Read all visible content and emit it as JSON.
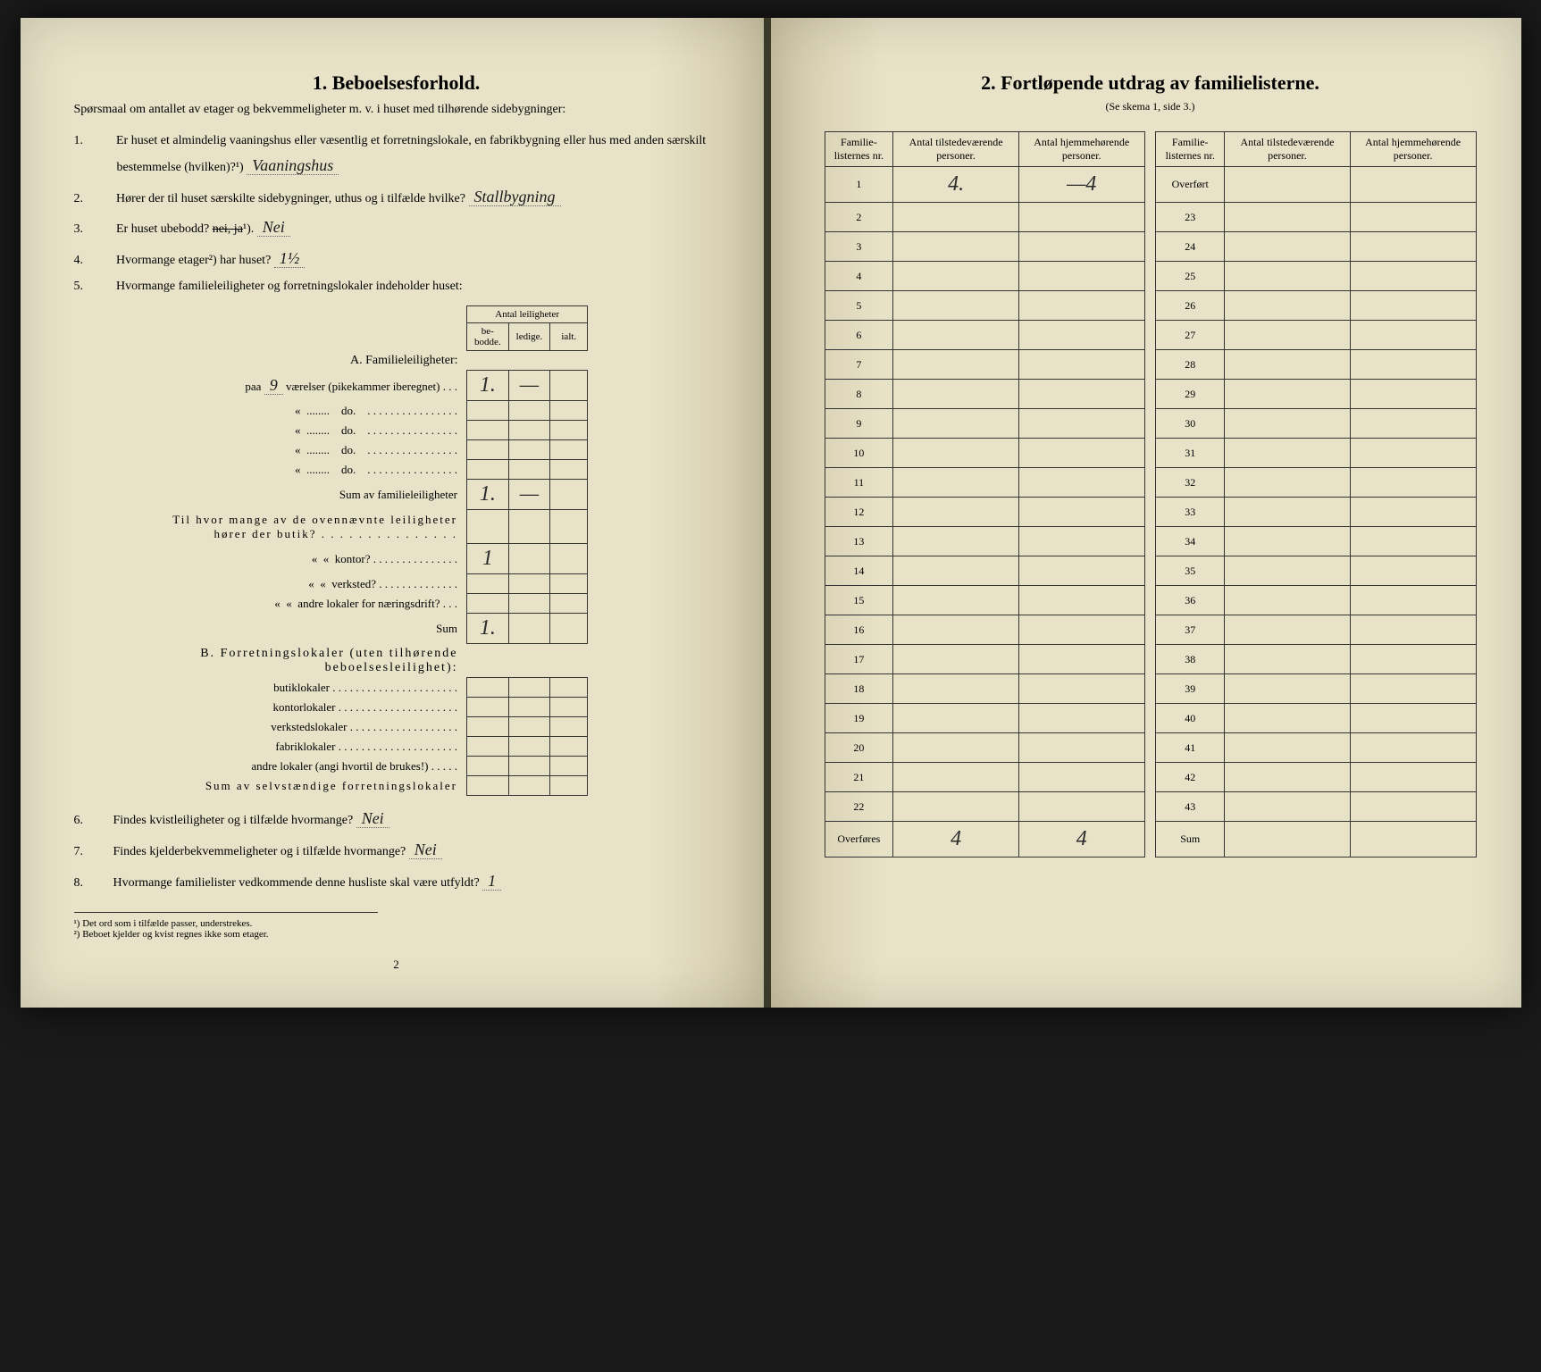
{
  "left": {
    "title": "1.   Beboelsesforhold.",
    "intro": "Spørsmaal om antallet av etager og bekvemmeligheter m. v. i huset med tilhørende sidebygninger:",
    "q1": "Er huset et almindelig vaaningshus eller væsentlig et forretningslokale, en fabrikbygning eller hus med anden særskilt bestemmelse (hvilken)?¹)",
    "a1": "Vaaningshus",
    "q2": "Hører der til huset særskilte sidebygninger, uthus og i tilfælde hvilke?",
    "a2": "Stallbygning",
    "q3": "Er huset ubebodd?",
    "a3_struck": "nei, ja",
    "a3": "Nei",
    "q4": "Hvormange etager²) har huset?",
    "a4": "1½",
    "q5": "Hvormange familieleiligheter og forretningslokaler indeholder huset:",
    "leil_header_top": "Antal leiligheter",
    "leil_cols": [
      "be-bodde.",
      "ledige.",
      "ialt."
    ],
    "sectionA": "A. Familieleiligheter:",
    "rowA1_label": "paa",
    "rowA1_hand": "9",
    "rowA1_rest": "værelser (pikekammer iberegnet) . . .",
    "rowA1_val": "1.",
    "rowA1_val2": "—",
    "rowA_do": "do.",
    "sumA": "Sum av familieleiligheter",
    "sumA_val": "1.",
    "sumA_val2": "—",
    "midq": "Til hvor mange av de ovennævnte leiligheter hører der butik?",
    "mid_kontor": "kontor?",
    "mid_kontor_val": "1",
    "mid_verksted": "verksted?",
    "mid_andre": "andre lokaler for næringsdrift?",
    "mid_sum": "Sum",
    "mid_sum_val": "1.",
    "sectionB": "B. Forretningslokaler (uten tilhørende beboelsesleilighet):",
    "b_rows": [
      "butiklokaler",
      "kontorlokaler",
      "verkstedslokaler",
      "fabriklokaler",
      "andre lokaler (angi hvortil de brukes!)"
    ],
    "sumB": "Sum av selvstændige forretningslokaler",
    "q6": "Findes kvistleiligheter og i tilfælde hvormange?",
    "a6": "Nei",
    "q7": "Findes kjelderbekvemmeligheter og i tilfælde hvormange?",
    "a7": "Nei",
    "q8": "Hvormange familielister vedkommende denne husliste skal være utfyldt?",
    "a8": "1",
    "fn1": "Det ord som i tilfælde passer, understrekes.",
    "fn2": "Beboet kjelder og kvist regnes ikke som etager.",
    "pagenum": "2"
  },
  "right": {
    "title": "2.   Fortløpende utdrag av familielisterne.",
    "subtitle": "(Se skema 1, side 3.)",
    "headers": [
      "Familie-listernes nr.",
      "Antal tilstedeværende personer.",
      "Antal hjemmehørende personer."
    ],
    "row1_tilst": "4.",
    "row1_hjemme": "—4",
    "overfort": "Overført",
    "overfores": "Overføres",
    "sum": "Sum",
    "over_tilst": "4",
    "over_hjemme": "4",
    "left_nums": [
      "1",
      "2",
      "3",
      "4",
      "5",
      "6",
      "7",
      "8",
      "9",
      "10",
      "11",
      "12",
      "13",
      "14",
      "15",
      "16",
      "17",
      "18",
      "19",
      "20",
      "21",
      "22"
    ],
    "right_nums": [
      "23",
      "24",
      "25",
      "26",
      "27",
      "28",
      "29",
      "30",
      "31",
      "32",
      "33",
      "34",
      "35",
      "36",
      "37",
      "38",
      "39",
      "40",
      "41",
      "42",
      "43"
    ]
  },
  "colors": {
    "paper": "#e8e2c8",
    "ink": "#1a1a1a",
    "border": "#333333"
  }
}
